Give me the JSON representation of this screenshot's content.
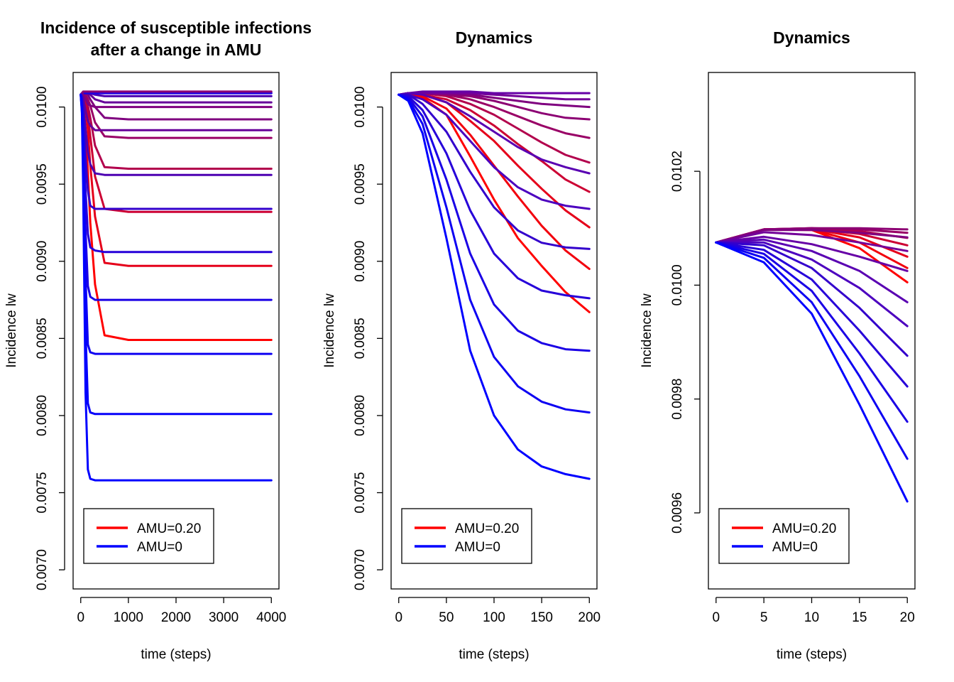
{
  "colors": {
    "high_amu": "#ff0000",
    "low_amu": "#0000ff",
    "axis": "#000000",
    "background": "#ffffff"
  },
  "chart_data": [
    {
      "type": "line",
      "title_lines": [
        "Incidence of susceptible infections",
        "after a change in AMU"
      ],
      "xlabel": "time (steps)",
      "ylabel": "Incidence lw",
      "xlim": [
        0,
        4000
      ],
      "ylim": [
        0.007,
        0.0101
      ],
      "xticks": [
        0,
        1000,
        2000,
        3000,
        4000
      ],
      "xtick_labels": [
        "0",
        "1000",
        "2000",
        "3000",
        "4000"
      ],
      "yticks": [
        0.007,
        0.0075,
        0.008,
        0.0085,
        0.009,
        0.0095,
        0.01
      ],
      "ytick_labels": [
        "0.0070",
        "0.0075",
        "0.0080",
        "0.0085",
        "0.0090",
        "0.0095",
        "0.0100"
      ],
      "grid": false,
      "legend": {
        "position": "bottom-left",
        "entries": [
          {
            "label": "AMU=0.20",
            "color": "#ff0000"
          },
          {
            "label": "AMU=0",
            "color": "#0000ff"
          }
        ]
      },
      "x": [
        0,
        25,
        50,
        100,
        150,
        200,
        300,
        500,
        1000,
        2000,
        4000
      ],
      "series": [
        {
          "color": "#ff0000",
          "values": [
            0.01008,
            0.01007,
            0.01004,
            0.00986,
            0.00958,
            0.00925,
            0.00885,
            0.00852,
            0.00849,
            0.00849,
            0.00849
          ]
        },
        {
          "color": "#e5001a",
          "values": [
            0.01008,
            0.01008,
            0.01007,
            0.01,
            0.00985,
            0.00962,
            0.00929,
            0.00899,
            0.00897,
            0.00897,
            0.00897
          ]
        },
        {
          "color": "#cc0033",
          "values": [
            0.01008,
            0.01008,
            0.01008,
            0.01004,
            0.00995,
            0.00981,
            0.00955,
            0.00934,
            0.00932,
            0.00932,
            0.00932
          ]
        },
        {
          "color": "#b2004c",
          "values": [
            0.01008,
            0.01008,
            0.01008,
            0.01006,
            0.01001,
            0.00993,
            0.00975,
            0.00961,
            0.0096,
            0.0096,
            0.0096
          ]
        },
        {
          "color": "#990066",
          "values": [
            0.01008,
            0.01009,
            0.01009,
            0.01008,
            0.01005,
            0.01001,
            0.0099,
            0.00981,
            0.0098,
            0.0098,
            0.0098
          ]
        },
        {
          "color": "#7f007f",
          "values": [
            0.01008,
            0.01009,
            0.01009,
            0.01009,
            0.01008,
            0.01005,
            0.01,
            0.00993,
            0.00992,
            0.00992,
            0.00992
          ]
        },
        {
          "color": "#660099",
          "values": [
            0.01008,
            0.01009,
            0.01009,
            0.01009,
            0.01009,
            0.01008,
            0.01005,
            0.01003,
            0.01003,
            0.01003,
            0.01003
          ]
        },
        {
          "color": "#4c00b2",
          "values": [
            0.01008,
            0.01009,
            0.01009,
            0.01009,
            0.01009,
            0.01009,
            0.01008,
            0.01007,
            0.01007,
            0.01007,
            0.01007
          ]
        },
        {
          "color": "#3300cc",
          "values": [
            0.01008,
            0.01009,
            0.01009,
            0.01009,
            0.01009,
            0.01009,
            0.01009,
            0.01009,
            0.01009,
            0.01009,
            0.01009
          ]
        },
        {
          "color": "#1a00e5",
          "values": [
            0.01008,
            0.01009,
            0.01009,
            0.01009,
            0.01009,
            0.01009,
            0.01009,
            0.01009,
            0.01009,
            0.01009,
            0.01009
          ]
        },
        {
          "color": "#8c0073",
          "values": [
            0.01008,
            0.01009,
            0.0101,
            0.0101,
            0.0101,
            0.0101,
            0.0101,
            0.0101,
            0.0101,
            0.0101,
            0.0101
          ]
        },
        {
          "color": "#7f007f",
          "values": [
            0.01008,
            0.01009,
            0.01008,
            0.01005,
            0.01002,
            0.01001,
            0.01,
            0.01,
            0.01,
            0.01,
            0.01
          ]
        },
        {
          "color": "#660099",
          "values": [
            0.01008,
            0.01008,
            0.01006,
            0.00998,
            0.00991,
            0.00988,
            0.00985,
            0.00985,
            0.00985,
            0.00985,
            0.00985
          ]
        },
        {
          "color": "#4c00b2",
          "values": [
            0.01008,
            0.01007,
            0.01002,
            0.00986,
            0.00971,
            0.00963,
            0.00957,
            0.00956,
            0.00956,
            0.00956,
            0.00956
          ]
        },
        {
          "color": "#3300cc",
          "values": [
            0.01008,
            0.01006,
            0.00997,
            0.00968,
            0.00946,
            0.00936,
            0.00934,
            0.00934,
            0.00934,
            0.00934,
            0.00934
          ]
        },
        {
          "color": "#2600d9",
          "values": [
            0.01008,
            0.01004,
            0.0099,
            0.00946,
            0.00918,
            0.00909,
            0.00907,
            0.00906,
            0.00906,
            0.00906,
            0.00906
          ]
        },
        {
          "color": "#1a00e5",
          "values": [
            0.01008,
            0.01002,
            0.00982,
            0.0092,
            0.00884,
            0.00877,
            0.00875,
            0.00875,
            0.00875,
            0.00875,
            0.00875
          ]
        },
        {
          "color": "#0d00f2",
          "values": [
            0.01008,
            0.01,
            0.00973,
            0.0089,
            0.00846,
            0.00841,
            0.0084,
            0.0084,
            0.0084,
            0.0084,
            0.0084
          ]
        },
        {
          "color": "#0500fa",
          "values": [
            0.01008,
            0.00998,
            0.00962,
            0.00855,
            0.00808,
            0.00802,
            0.00801,
            0.00801,
            0.00801,
            0.00801,
            0.00801
          ]
        },
        {
          "color": "#0000ff",
          "values": [
            0.01008,
            0.00996,
            0.0095,
            0.00815,
            0.00765,
            0.00759,
            0.00758,
            0.00758,
            0.00758,
            0.00758,
            0.00758
          ]
        }
      ]
    },
    {
      "type": "line",
      "title_lines": [
        "Dynamics"
      ],
      "xlabel": "time (steps)",
      "ylabel": "Incidence lw",
      "xlim": [
        0,
        200
      ],
      "ylim": [
        0.007,
        0.0101
      ],
      "xticks": [
        0,
        50,
        100,
        150,
        200
      ],
      "xtick_labels": [
        "0",
        "50",
        "100",
        "150",
        "200"
      ],
      "yticks": [
        0.007,
        0.0075,
        0.008,
        0.0085,
        0.009,
        0.0095,
        0.01
      ],
      "ytick_labels": [
        "0.0070",
        "0.0075",
        "0.0080",
        "0.0085",
        "0.0090",
        "0.0095",
        "0.0100"
      ],
      "grid": false,
      "legend": {
        "position": "bottom-left",
        "entries": [
          {
            "label": "AMU=0.20",
            "color": "#ff0000"
          },
          {
            "label": "AMU=0",
            "color": "#0000ff"
          }
        ]
      },
      "x": [
        0,
        10,
        25,
        50,
        75,
        100,
        125,
        150,
        175,
        200
      ],
      "series": [
        {
          "color": "#ff0000",
          "values": [
            0.01008,
            0.01009,
            0.01006,
            0.00995,
            0.00968,
            0.0094,
            0.00915,
            0.00897,
            0.0088,
            0.00867
          ]
        },
        {
          "color": "#f2000d",
          "values": [
            0.01008,
            0.01009,
            0.01007,
            0.00999,
            0.00982,
            0.00962,
            0.00942,
            0.00923,
            0.00907,
            0.00895
          ]
        },
        {
          "color": "#e5001a",
          "values": [
            0.01008,
            0.01009,
            0.01008,
            0.01003,
            0.00991,
            0.00978,
            0.00962,
            0.00947,
            0.00933,
            0.00922
          ]
        },
        {
          "color": "#cc0033",
          "values": [
            0.01008,
            0.01009,
            0.01008,
            0.01005,
            0.00998,
            0.00988,
            0.00976,
            0.00965,
            0.00953,
            0.00945
          ]
        },
        {
          "color": "#b2004c",
          "values": [
            0.01008,
            0.01009,
            0.01009,
            0.01007,
            0.01002,
            0.00995,
            0.00986,
            0.00977,
            0.00969,
            0.00964
          ]
        },
        {
          "color": "#990066",
          "values": [
            0.01008,
            0.01009,
            0.01009,
            0.01008,
            0.01005,
            0.01,
            0.00994,
            0.00988,
            0.00983,
            0.0098
          ]
        },
        {
          "color": "#8c0073",
          "values": [
            0.01008,
            0.01009,
            0.01009,
            0.01008,
            0.01007,
            0.01004,
            0.01,
            0.00996,
            0.00993,
            0.00992
          ]
        },
        {
          "color": "#7f007f",
          "values": [
            0.01008,
            0.01009,
            0.01009,
            0.01009,
            0.01008,
            0.01006,
            0.01004,
            0.01002,
            0.01001,
            0.01
          ]
        },
        {
          "color": "#730099",
          "values": [
            0.01008,
            0.01009,
            0.01009,
            0.01009,
            0.01009,
            0.01008,
            0.01007,
            0.01006,
            0.01005,
            0.01005
          ]
        },
        {
          "color": "#6600a6",
          "values": [
            0.01008,
            0.01009,
            0.0101,
            0.0101,
            0.0101,
            0.01009,
            0.01009,
            0.01009,
            0.01009,
            0.01009
          ]
        },
        {
          "color": "#5900b2",
          "values": [
            0.01008,
            0.01009,
            0.01008,
            0.01003,
            0.00994,
            0.00984,
            0.00974,
            0.00966,
            0.00961,
            0.00957
          ]
        },
        {
          "color": "#4c00bf",
          "values": [
            0.01008,
            0.01008,
            0.01005,
            0.00995,
            0.00978,
            0.00961,
            0.00948,
            0.0094,
            0.00936,
            0.00934
          ]
        },
        {
          "color": "#3300cc",
          "values": [
            0.01008,
            0.01008,
            0.01002,
            0.00984,
            0.00958,
            0.00935,
            0.0092,
            0.00912,
            0.00909,
            0.00908
          ]
        },
        {
          "color": "#2600d9",
          "values": [
            0.01008,
            0.01007,
            0.00998,
            0.0097,
            0.00933,
            0.00905,
            0.00889,
            0.00881,
            0.00878,
            0.00876
          ]
        },
        {
          "color": "#1a00e5",
          "values": [
            0.01008,
            0.01006,
            0.00994,
            0.00953,
            0.00905,
            0.00872,
            0.00855,
            0.00847,
            0.00843,
            0.00842
          ]
        },
        {
          "color": "#0d00f2",
          "values": [
            0.01008,
            0.01005,
            0.00989,
            0.00935,
            0.00875,
            0.00838,
            0.00819,
            0.00809,
            0.00804,
            0.00802
          ]
        },
        {
          "color": "#0000ff",
          "values": [
            0.01008,
            0.01004,
            0.00983,
            0.00915,
            0.00842,
            0.008,
            0.00778,
            0.00767,
            0.00762,
            0.00759
          ]
        }
      ]
    },
    {
      "type": "line",
      "title_lines": [
        "Dynamics"
      ],
      "xlabel": "time (steps)",
      "ylabel": "Incidence lw",
      "xlim": [
        0,
        20
      ],
      "ylim": [
        0.0095,
        0.01034
      ],
      "xticks": [
        0,
        5,
        10,
        15,
        20
      ],
      "xtick_labels": [
        "0",
        "5",
        "10",
        "15",
        "20"
      ],
      "yticks": [
        0.0096,
        0.0098,
        0.01,
        0.0102
      ],
      "ytick_labels": [
        "0.0096",
        "0.0098",
        "0.0100",
        "0.0102"
      ],
      "grid": false,
      "legend": {
        "position": "bottom-left",
        "entries": [
          {
            "label": "AMU=0.20",
            "color": "#ff0000"
          },
          {
            "label": "AMU=0",
            "color": "#0000ff"
          }
        ]
      },
      "x": [
        0,
        5,
        10,
        15,
        20
      ],
      "series": [
        {
          "color": "#ff0000",
          "values": [
            0.010075,
            0.010098,
            0.010097,
            0.010065,
            0.010005
          ]
        },
        {
          "color": "#f2000d",
          "values": [
            0.010075,
            0.010098,
            0.010098,
            0.010075,
            0.01003
          ]
        },
        {
          "color": "#e5001a",
          "values": [
            0.010075,
            0.010098,
            0.010099,
            0.010084,
            0.01005
          ]
        },
        {
          "color": "#cc0033",
          "values": [
            0.010075,
            0.010098,
            0.010099,
            0.01009,
            0.01007
          ]
        },
        {
          "color": "#b2004c",
          "values": [
            0.010075,
            0.010098,
            0.0101,
            0.010095,
            0.010083
          ]
        },
        {
          "color": "#990066",
          "values": [
            0.010075,
            0.010098,
            0.0101,
            0.010098,
            0.010092
          ]
        },
        {
          "color": "#8c0073",
          "values": [
            0.010075,
            0.010098,
            0.0101,
            0.0101,
            0.010098
          ]
        },
        {
          "color": "#7f007f",
          "values": [
            0.010075,
            0.010097,
            0.010097,
            0.010092,
            0.010084
          ]
        },
        {
          "color": "#730099",
          "values": [
            0.010075,
            0.010093,
            0.010088,
            0.010075,
            0.01006
          ]
        },
        {
          "color": "#6600a6",
          "values": [
            0.010075,
            0.010085,
            0.010072,
            0.01005,
            0.010025
          ]
        },
        {
          "color": "#5900b2",
          "values": [
            0.010075,
            0.01008,
            0.01006,
            0.010025,
            0.00997
          ]
        },
        {
          "color": "#4c00bf",
          "values": [
            0.010075,
            0.010075,
            0.010045,
            0.009995,
            0.009928
          ]
        },
        {
          "color": "#3300cc",
          "values": [
            0.010075,
            0.01007,
            0.01003,
            0.00996,
            0.009876
          ]
        },
        {
          "color": "#2600d9",
          "values": [
            0.010075,
            0.010062,
            0.01001,
            0.00992,
            0.009822
          ]
        },
        {
          "color": "#1a00e5",
          "values": [
            0.010075,
            0.010055,
            0.00999,
            0.00988,
            0.00976
          ]
        },
        {
          "color": "#0d00f2",
          "values": [
            0.010075,
            0.010048,
            0.00997,
            0.00984,
            0.009695
          ]
        },
        {
          "color": "#0000ff",
          "values": [
            0.010075,
            0.01004,
            0.00995,
            0.00979,
            0.00962
          ]
        }
      ]
    }
  ]
}
